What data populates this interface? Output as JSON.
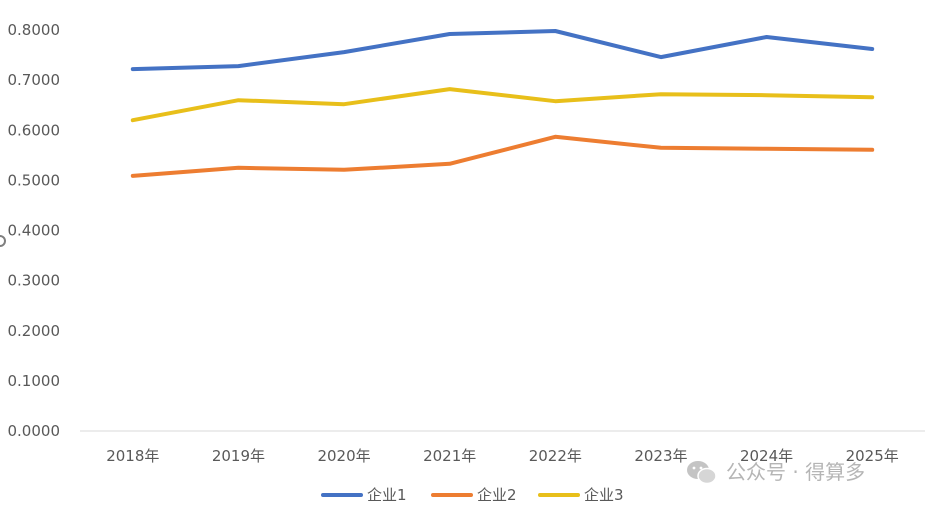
{
  "chart_data": {
    "type": "line",
    "categories": [
      "2018年",
      "2019年",
      "2020年",
      "2021年",
      "2022年",
      "2023年",
      "2024年",
      "2025年"
    ],
    "series": [
      {
        "name": "企业1",
        "color": "#4472C4",
        "values": [
          0.722,
          0.728,
          0.756,
          0.792,
          0.798,
          0.746,
          0.786,
          0.762
        ]
      },
      {
        "name": "企业2",
        "color": "#ED7D31",
        "values": [
          0.509,
          0.525,
          0.521,
          0.533,
          0.587,
          0.565,
          0.563,
          0.561
        ]
      },
      {
        "name": "企业3",
        "color": "#E8BF1A",
        "values": [
          0.62,
          0.66,
          0.652,
          0.682,
          0.658,
          0.672,
          0.67,
          0.666
        ]
      }
    ],
    "yticks": [
      "0.0000",
      "0.1000",
      "0.2000",
      "0.3000",
      "0.4000",
      "0.5000",
      "0.6000",
      "0.7000",
      "0.8000"
    ],
    "ylim": [
      0,
      0.8
    ],
    "grid": false,
    "legend_position": "bottom"
  },
  "watermark": {
    "text": "公众号 · 得算多",
    "icon": "wechat-icon"
  }
}
